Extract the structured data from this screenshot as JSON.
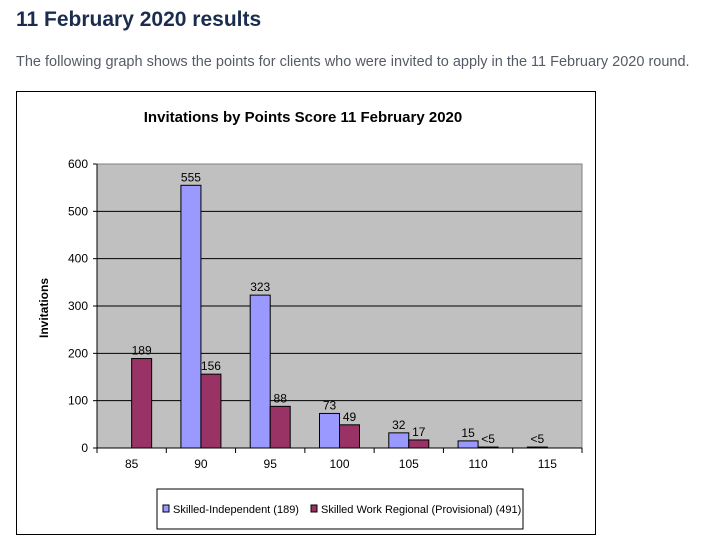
{
  "page": {
    "title": "11 February 2020 results",
    "intro": "The following graph shows the points for clients who were invited to apply in the 11 February 2020 round."
  },
  "chart_data": {
    "type": "bar",
    "title": "Invitations by Points Score 11 February 2020",
    "xlabel": "",
    "ylabel": "Invitations",
    "categories": [
      "85",
      "90",
      "95",
      "100",
      "105",
      "110",
      "115"
    ],
    "series": [
      {
        "name": "Skilled-Independent (189)",
        "color": "#9999ff",
        "values": [
          0,
          555,
          323,
          73,
          32,
          15,
          2
        ],
        "labels": [
          "",
          "555",
          "323",
          "73",
          "32",
          "15",
          "<5"
        ]
      },
      {
        "name": "Skilled Work Regional (Provisional) (491)",
        "color": "#993366",
        "values": [
          189,
          156,
          88,
          49,
          17,
          2,
          0
        ],
        "labels": [
          "189",
          "156",
          "88",
          "49",
          "17",
          "<5",
          ""
        ]
      }
    ],
    "yticks": [
      0,
      100,
      200,
      300,
      400,
      500,
      600
    ],
    "ylim": [
      0,
      600
    ],
    "grid": true,
    "legend_position": "bottom",
    "plot_background": "#c0c0c0"
  }
}
